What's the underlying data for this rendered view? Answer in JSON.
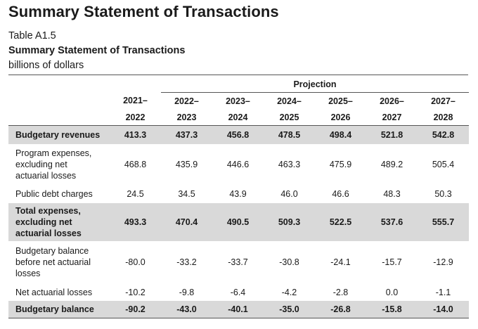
{
  "page_title": "Summary Statement of Transactions",
  "table_label": "Table A1.5",
  "table_title": "Summary Statement of Transactions",
  "units": "billions of dollars",
  "projection_label": "Projection",
  "year_top": [
    "2021–",
    "2022–",
    "2023–",
    "2024–",
    "2025–",
    "2026–",
    "2027–"
  ],
  "year_bottom": [
    "2022",
    "2023",
    "2024",
    "2025",
    "2026",
    "2027",
    "2028"
  ],
  "rows": [
    {
      "label": "Budgetary revenues",
      "values": [
        "413.3",
        "437.3",
        "456.8",
        "478.5",
        "498.4",
        "521.8",
        "542.8"
      ]
    },
    {
      "label": "Program expenses,\nexcluding net\nactuarial losses",
      "values": [
        "468.8",
        "435.9",
        "446.6",
        "463.3",
        "475.9",
        "489.2",
        "505.4"
      ]
    },
    {
      "label": "Public debt charges",
      "values": [
        "24.5",
        "34.5",
        "43.9",
        "46.0",
        "46.6",
        "48.3",
        "50.3"
      ]
    },
    {
      "label": "Total expenses,\nexcluding net\nactuarial losses",
      "values": [
        "493.3",
        "470.4",
        "490.5",
        "509.3",
        "522.5",
        "537.6",
        "555.7"
      ]
    },
    {
      "label": "Budgetary balance\nbefore net actuarial\nlosses",
      "values": [
        "-80.0",
        "-33.2",
        "-33.7",
        "-30.8",
        "-24.1",
        "-15.7",
        "-12.9"
      ]
    },
    {
      "label": "Net actuarial losses",
      "values": [
        "-10.2",
        "-9.8",
        "-6.4",
        "-4.2",
        "-2.8",
        "0.0",
        "-1.1"
      ]
    },
    {
      "label": "Budgetary balance",
      "values": [
        "-90.2",
        "-43.0",
        "-40.1",
        "-35.0",
        "-26.8",
        "-15.8",
        "-14.0"
      ]
    }
  ]
}
